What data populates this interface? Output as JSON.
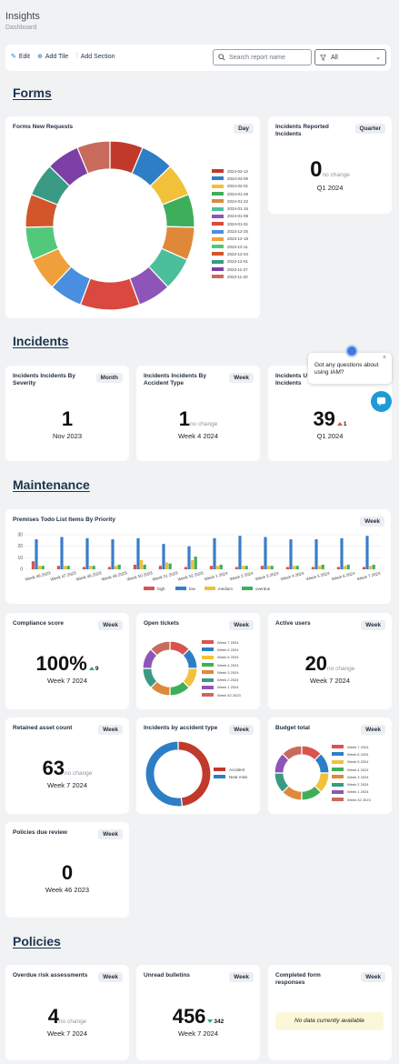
{
  "app": {
    "title": "Insights",
    "subtitle": "Dashboard"
  },
  "toolbar": {
    "edit_label": "Edit",
    "add_tile_label": "Add Tile",
    "add_section_label": "Add Section",
    "search_placeholder": "Search report name",
    "filter_value": "All"
  },
  "sections": {
    "forms": "Forms",
    "incidents": "Incidents",
    "maintenance": "Maintenance",
    "policies": "Policies"
  },
  "chat": {
    "message": "Got any questions about using IAM?"
  },
  "cards": {
    "forms_new_requests": {
      "title": "Forms New Requests",
      "period_pill": "Day"
    },
    "incidents_reported": {
      "title": "Incidents Reported Incidents",
      "period_pill": "Quarter",
      "value": "0",
      "change": "no change",
      "period": "Q1 2024"
    },
    "incidents_by_severity": {
      "title": "Incidents Incidents By Severity",
      "period_pill": "Month",
      "value": "1",
      "period": "Nov 2023"
    },
    "incidents_by_accident_type": {
      "title": "Incidents Incidents By Accident Type",
      "period_pill": "Week",
      "value": "1",
      "change": "no change",
      "period": "Week 4 2024"
    },
    "incidents_third": {
      "title": "Incidents U Incidents",
      "value": "39",
      "delta": "1",
      "period": "Q1 2024"
    },
    "premises_todo": {
      "title": "Premises Todo List Items By Priority",
      "period_pill": "Week"
    },
    "compliance_score": {
      "title": "Compliance score",
      "period_pill": "Week",
      "value": "100%",
      "delta": "9",
      "period": "Week 7 2024"
    },
    "open_tickets": {
      "title": "Open tickets",
      "period_pill": "Week"
    },
    "active_users": {
      "title": "Active users",
      "period_pill": "Week",
      "value": "20",
      "change": "no change",
      "period": "Week 7 2024"
    },
    "retained_asset_count": {
      "title": "Retained asset count",
      "period_pill": "Week",
      "value": "63",
      "change": "no change",
      "period": "Week 7 2024"
    },
    "incidents_by_accident": {
      "title": "Incidents by accident type",
      "period_pill": "Week"
    },
    "budget_total": {
      "title": "Budget total",
      "period_pill": "Week"
    },
    "policies_due_review": {
      "title": "Policies due review",
      "period_pill": "Week",
      "value": "0",
      "period": "Week 46 2023"
    },
    "overdue_risk": {
      "title": "Overdue risk assessments",
      "period_pill": "Week",
      "value": "4",
      "change": "no change",
      "period": "Week 7 2024"
    },
    "unread_bulletins": {
      "title": "Unread bulletins",
      "period_pill": "Week",
      "value": "456",
      "delta": "342",
      "period": "Week 7 2024"
    },
    "completed_forms": {
      "title": "Completed form responses",
      "period_pill": "Week",
      "empty_text": "No data currently available"
    }
  },
  "chart_data": [
    {
      "type": "pie",
      "id": "forms_new_requests",
      "categories": [
        "2024-02-12",
        "2024-02-05",
        "2024-02-01",
        "2024-01-29",
        "2024-01-22",
        "2024-01-15",
        "2024-01-08",
        "2024-01-01",
        "2023-12-25",
        "2023-12-18",
        "2023-12-11",
        "2023-12-04",
        "2023-12-01",
        "2023-11-27",
        "2023-11-20"
      ],
      "values": [
        5,
        5,
        5,
        5,
        5,
        5,
        5,
        9,
        5,
        5,
        5,
        5,
        5,
        5,
        5
      ],
      "colors": [
        "#c0392b",
        "#2e7ec6",
        "#f1c13b",
        "#3fae5a",
        "#e0883a",
        "#4bbf9b",
        "#8e55b8",
        "#d9493f",
        "#4a8ee0",
        "#f0a03a",
        "#52c87a",
        "#d3562a",
        "#3a9a84",
        "#7b3fa6",
        "#c86b5d"
      ],
      "donut": true
    },
    {
      "type": "bar",
      "id": "premises_todo",
      "categories": [
        "Week 46 2023",
        "Week 47 2023",
        "Week 48 2023",
        "Week 49 2023",
        "Week 50 2023",
        "Week 51 2023",
        "Week 52 2023",
        "Week 1 2024",
        "Week 2 2024",
        "Week 3 2024",
        "Week 4 2024",
        "Week 5 2024",
        "Week 6 2024",
        "Week 7 2024"
      ],
      "series": [
        {
          "name": "high",
          "color": "#d9534f",
          "values": [
            7,
            3,
            2,
            2,
            4,
            3,
            2,
            3,
            2,
            3,
            2,
            2,
            2,
            2
          ]
        },
        {
          "name": "low",
          "color": "#3a7dc9",
          "values": [
            26,
            28,
            27,
            26,
            27,
            22,
            20,
            27,
            29,
            28,
            26,
            26,
            27,
            29
          ]
        },
        {
          "name": "medium",
          "color": "#f0c03a",
          "values": [
            3,
            3,
            3,
            3,
            8,
            6,
            8,
            3,
            3,
            3,
            3,
            3,
            3,
            3
          ]
        },
        {
          "name": "overdue",
          "color": "#3fae5a",
          "values": [
            3,
            3,
            3,
            4,
            4,
            5,
            11,
            4,
            3,
            3,
            3,
            4,
            4,
            4
          ]
        }
      ],
      "ylim": [
        0,
        30
      ],
      "yticks": [
        0,
        10,
        20,
        30
      ]
    },
    {
      "type": "pie",
      "id": "open_tickets",
      "categories": [
        "Week 7 2024",
        "Week 6 2024",
        "Week 5 2024",
        "Week 4 2024",
        "Week 3 2024",
        "Week 2 2024",
        "Week 1 2024",
        "Week 52 2023"
      ],
      "values": [
        1,
        1,
        1,
        1,
        1,
        1,
        1,
        1
      ],
      "colors": [
        "#d9534f",
        "#2e7ec6",
        "#f1c13b",
        "#3fae5a",
        "#e0883a",
        "#3a9a84",
        "#8e55b8",
        "#c86b5d"
      ],
      "donut": true
    },
    {
      "type": "pie",
      "id": "incidents_by_accident",
      "categories": [
        "Accident",
        "Near miss"
      ],
      "values": [
        48,
        52
      ],
      "colors": [
        "#c0392b",
        "#2e7ec6"
      ],
      "donut": true
    },
    {
      "type": "pie",
      "id": "budget_total",
      "categories": [
        "Week 7 2024",
        "Week 6 2024",
        "Week 5 2024",
        "Week 4 2024",
        "Week 3 2024",
        "Week 2 2024",
        "Week 1 2024",
        "Week 52 2023"
      ],
      "values": [
        1,
        1,
        1,
        1,
        1,
        1,
        1,
        1
      ],
      "colors": [
        "#d9534f",
        "#2e7ec6",
        "#f1c13b",
        "#3fae5a",
        "#e0883a",
        "#3a9a84",
        "#8e55b8",
        "#c86b5d"
      ],
      "donut": true
    }
  ]
}
